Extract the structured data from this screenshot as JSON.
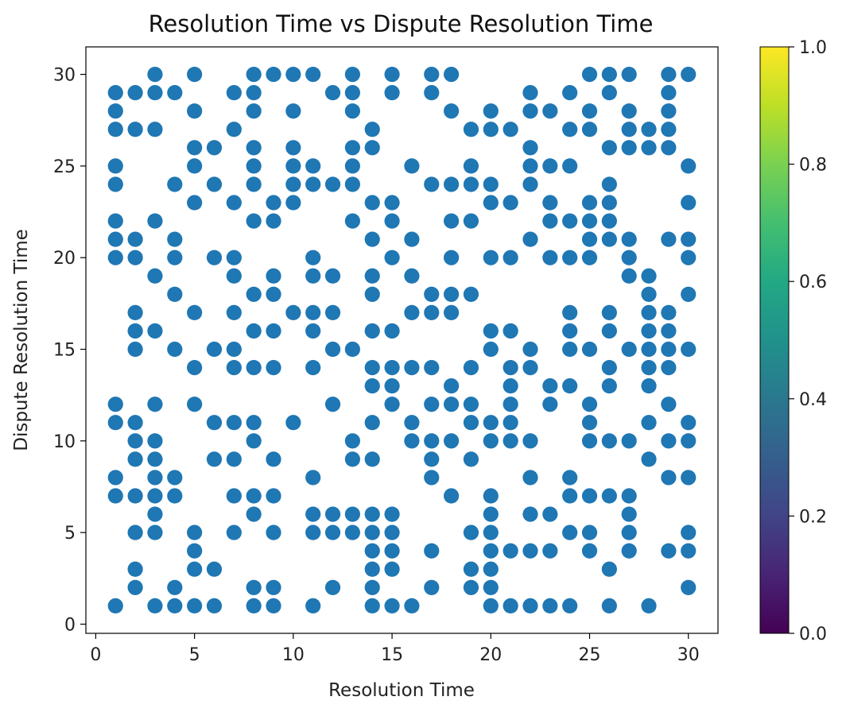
{
  "chart_data": {
    "type": "scatter",
    "title": "Resolution Time vs Dispute Resolution Time",
    "xlabel": "Resolution Time",
    "ylabel": "Dispute Resolution Time",
    "xlim": [
      -0.5,
      31.5
    ],
    "ylim": [
      -0.5,
      31.5
    ],
    "xticks": [
      0,
      5,
      10,
      15,
      20,
      25,
      30
    ],
    "yticks": [
      0,
      5,
      10,
      15,
      20,
      25,
      30
    ],
    "grid": false,
    "marker_color": "#1f77b4",
    "colorbar": {
      "colormap": "viridis",
      "range": [
        0.0,
        1.0
      ],
      "ticks": [
        "0.0",
        "0.2",
        "0.4",
        "0.6",
        "0.8",
        "1.0"
      ]
    },
    "points": [
      [
        1,
        29
      ],
      [
        1,
        28
      ],
      [
        1,
        27
      ],
      [
        1,
        25
      ],
      [
        1,
        24
      ],
      [
        1,
        22
      ],
      [
        1,
        21
      ],
      [
        1,
        20
      ],
      [
        1,
        12
      ],
      [
        1,
        11
      ],
      [
        1,
        8
      ],
      [
        1,
        7
      ],
      [
        1,
        1
      ],
      [
        2,
        29
      ],
      [
        2,
        27
      ],
      [
        2,
        21
      ],
      [
        2,
        20
      ],
      [
        2,
        17
      ],
      [
        2,
        16
      ],
      [
        2,
        15
      ],
      [
        2,
        11
      ],
      [
        2,
        10
      ],
      [
        2,
        9
      ],
      [
        2,
        7
      ],
      [
        2,
        5
      ],
      [
        2,
        3
      ],
      [
        2,
        2
      ],
      [
        3,
        30
      ],
      [
        3,
        29
      ],
      [
        3,
        27
      ],
      [
        3,
        22
      ],
      [
        3,
        19
      ],
      [
        3,
        16
      ],
      [
        3,
        12
      ],
      [
        3,
        10
      ],
      [
        3,
        9
      ],
      [
        3,
        8
      ],
      [
        3,
        7
      ],
      [
        3,
        6
      ],
      [
        3,
        5
      ],
      [
        3,
        1
      ],
      [
        4,
        29
      ],
      [
        4,
        24
      ],
      [
        4,
        21
      ],
      [
        4,
        20
      ],
      [
        4,
        18
      ],
      [
        4,
        15
      ],
      [
        4,
        8
      ],
      [
        4,
        7
      ],
      [
        4,
        2
      ],
      [
        4,
        1
      ],
      [
        5,
        30
      ],
      [
        5,
        28
      ],
      [
        5,
        26
      ],
      [
        5,
        25
      ],
      [
        5,
        23
      ],
      [
        5,
        17
      ],
      [
        5,
        14
      ],
      [
        5,
        12
      ],
      [
        5,
        5
      ],
      [
        5,
        4
      ],
      [
        5,
        3
      ],
      [
        5,
        1
      ],
      [
        6,
        26
      ],
      [
        6,
        24
      ],
      [
        6,
        20
      ],
      [
        6,
        15
      ],
      [
        6,
        11
      ],
      [
        6,
        9
      ],
      [
        6,
        3
      ],
      [
        6,
        1
      ],
      [
        7,
        29
      ],
      [
        7,
        27
      ],
      [
        7,
        23
      ],
      [
        7,
        20
      ],
      [
        7,
        19
      ],
      [
        7,
        17
      ],
      [
        7,
        15
      ],
      [
        7,
        14
      ],
      [
        7,
        11
      ],
      [
        7,
        9
      ],
      [
        7,
        7
      ],
      [
        7,
        5
      ],
      [
        8,
        30
      ],
      [
        8,
        29
      ],
      [
        8,
        28
      ],
      [
        8,
        26
      ],
      [
        8,
        25
      ],
      [
        8,
        24
      ],
      [
        8,
        22
      ],
      [
        8,
        18
      ],
      [
        8,
        16
      ],
      [
        8,
        14
      ],
      [
        8,
        11
      ],
      [
        8,
        10
      ],
      [
        8,
        7
      ],
      [
        8,
        6
      ],
      [
        8,
        2
      ],
      [
        8,
        1
      ],
      [
        9,
        30
      ],
      [
        9,
        23
      ],
      [
        9,
        22
      ],
      [
        9,
        19
      ],
      [
        9,
        18
      ],
      [
        9,
        16
      ],
      [
        9,
        14
      ],
      [
        9,
        9
      ],
      [
        9,
        7
      ],
      [
        9,
        5
      ],
      [
        9,
        2
      ],
      [
        9,
        1
      ],
      [
        10,
        30
      ],
      [
        10,
        28
      ],
      [
        10,
        26
      ],
      [
        10,
        25
      ],
      [
        10,
        24
      ],
      [
        10,
        23
      ],
      [
        10,
        17
      ],
      [
        10,
        11
      ],
      [
        11,
        30
      ],
      [
        11,
        25
      ],
      [
        11,
        24
      ],
      [
        11,
        20
      ],
      [
        11,
        19
      ],
      [
        11,
        17
      ],
      [
        11,
        16
      ],
      [
        11,
        14
      ],
      [
        11,
        8
      ],
      [
        11,
        6
      ],
      [
        11,
        5
      ],
      [
        11,
        1
      ],
      [
        12,
        29
      ],
      [
        12,
        24
      ],
      [
        12,
        19
      ],
      [
        12,
        17
      ],
      [
        12,
        15
      ],
      [
        12,
        12
      ],
      [
        12,
        6
      ],
      [
        12,
        5
      ],
      [
        12,
        2
      ],
      [
        13,
        30
      ],
      [
        13,
        29
      ],
      [
        13,
        28
      ],
      [
        13,
        26
      ],
      [
        13,
        25
      ],
      [
        13,
        24
      ],
      [
        13,
        22
      ],
      [
        13,
        15
      ],
      [
        13,
        10
      ],
      [
        13,
        9
      ],
      [
        13,
        6
      ],
      [
        13,
        5
      ],
      [
        14,
        27
      ],
      [
        14,
        26
      ],
      [
        14,
        23
      ],
      [
        14,
        21
      ],
      [
        14,
        19
      ],
      [
        14,
        18
      ],
      [
        14,
        16
      ],
      [
        14,
        14
      ],
      [
        14,
        13
      ],
      [
        14,
        11
      ],
      [
        14,
        9
      ],
      [
        14,
        6
      ],
      [
        14,
        5
      ],
      [
        14,
        4
      ],
      [
        14,
        3
      ],
      [
        14,
        2
      ],
      [
        14,
        1
      ],
      [
        15,
        30
      ],
      [
        15,
        29
      ],
      [
        15,
        23
      ],
      [
        15,
        22
      ],
      [
        15,
        20
      ],
      [
        15,
        16
      ],
      [
        15,
        14
      ],
      [
        15,
        13
      ],
      [
        15,
        12
      ],
      [
        15,
        6
      ],
      [
        15,
        5
      ],
      [
        15,
        4
      ],
      [
        15,
        3
      ],
      [
        15,
        1
      ],
      [
        16,
        25
      ],
      [
        16,
        21
      ],
      [
        16,
        19
      ],
      [
        16,
        17
      ],
      [
        16,
        14
      ],
      [
        16,
        11
      ],
      [
        16,
        10
      ],
      [
        16,
        1
      ],
      [
        17,
        30
      ],
      [
        17,
        29
      ],
      [
        17,
        24
      ],
      [
        17,
        18
      ],
      [
        17,
        17
      ],
      [
        17,
        14
      ],
      [
        17,
        12
      ],
      [
        17,
        10
      ],
      [
        17,
        9
      ],
      [
        17,
        8
      ],
      [
        17,
        4
      ],
      [
        17,
        2
      ],
      [
        18,
        30
      ],
      [
        18,
        28
      ],
      [
        18,
        24
      ],
      [
        18,
        22
      ],
      [
        18,
        20
      ],
      [
        18,
        18
      ],
      [
        18,
        17
      ],
      [
        18,
        13
      ],
      [
        18,
        12
      ],
      [
        18,
        10
      ],
      [
        18,
        7
      ],
      [
        19,
        27
      ],
      [
        19,
        25
      ],
      [
        19,
        24
      ],
      [
        19,
        22
      ],
      [
        19,
        18
      ],
      [
        19,
        14
      ],
      [
        19,
        12
      ],
      [
        19,
        11
      ],
      [
        19,
        9
      ],
      [
        19,
        5
      ],
      [
        19,
        3
      ],
      [
        19,
        2
      ],
      [
        20,
        28
      ],
      [
        20,
        27
      ],
      [
        20,
        24
      ],
      [
        20,
        23
      ],
      [
        20,
        20
      ],
      [
        20,
        16
      ],
      [
        20,
        15
      ],
      [
        20,
        11
      ],
      [
        20,
        10
      ],
      [
        20,
        7
      ],
      [
        20,
        6
      ],
      [
        20,
        5
      ],
      [
        20,
        4
      ],
      [
        20,
        3
      ],
      [
        20,
        2
      ],
      [
        20,
        1
      ],
      [
        21,
        27
      ],
      [
        21,
        23
      ],
      [
        21,
        20
      ],
      [
        21,
        16
      ],
      [
        21,
        14
      ],
      [
        21,
        13
      ],
      [
        21,
        12
      ],
      [
        21,
        11
      ],
      [
        21,
        10
      ],
      [
        21,
        4
      ],
      [
        21,
        1
      ],
      [
        22,
        29
      ],
      [
        22,
        28
      ],
      [
        22,
        26
      ],
      [
        22,
        25
      ],
      [
        22,
        24
      ],
      [
        22,
        21
      ],
      [
        22,
        15
      ],
      [
        22,
        14
      ],
      [
        22,
        10
      ],
      [
        22,
        8
      ],
      [
        22,
        6
      ],
      [
        22,
        4
      ],
      [
        22,
        1
      ],
      [
        23,
        28
      ],
      [
        23,
        25
      ],
      [
        23,
        23
      ],
      [
        23,
        22
      ],
      [
        23,
        20
      ],
      [
        23,
        13
      ],
      [
        23,
        12
      ],
      [
        23,
        6
      ],
      [
        23,
        4
      ],
      [
        23,
        1
      ],
      [
        24,
        29
      ],
      [
        24,
        27
      ],
      [
        24,
        25
      ],
      [
        24,
        22
      ],
      [
        24,
        20
      ],
      [
        24,
        17
      ],
      [
        24,
        16
      ],
      [
        24,
        15
      ],
      [
        24,
        13
      ],
      [
        24,
        8
      ],
      [
        24,
        7
      ],
      [
        24,
        5
      ],
      [
        24,
        1
      ],
      [
        25,
        30
      ],
      [
        25,
        28
      ],
      [
        25,
        27
      ],
      [
        25,
        23
      ],
      [
        25,
        22
      ],
      [
        25,
        21
      ],
      [
        25,
        20
      ],
      [
        25,
        15
      ],
      [
        25,
        12
      ],
      [
        25,
        11
      ],
      [
        25,
        10
      ],
      [
        25,
        7
      ],
      [
        25,
        5
      ],
      [
        25,
        4
      ],
      [
        26,
        30
      ],
      [
        26,
        29
      ],
      [
        26,
        26
      ],
      [
        26,
        24
      ],
      [
        26,
        23
      ],
      [
        26,
        22
      ],
      [
        26,
        21
      ],
      [
        26,
        17
      ],
      [
        26,
        16
      ],
      [
        26,
        14
      ],
      [
        26,
        13
      ],
      [
        26,
        10
      ],
      [
        26,
        7
      ],
      [
        26,
        3
      ],
      [
        26,
        1
      ],
      [
        27,
        30
      ],
      [
        27,
        28
      ],
      [
        27,
        27
      ],
      [
        27,
        26
      ],
      [
        27,
        21
      ],
      [
        27,
        20
      ],
      [
        27,
        19
      ],
      [
        27,
        15
      ],
      [
        27,
        10
      ],
      [
        27,
        7
      ],
      [
        27,
        6
      ],
      [
        27,
        5
      ],
      [
        27,
        4
      ],
      [
        28,
        27
      ],
      [
        28,
        26
      ],
      [
        28,
        19
      ],
      [
        28,
        18
      ],
      [
        28,
        17
      ],
      [
        28,
        16
      ],
      [
        28,
        15
      ],
      [
        28,
        14
      ],
      [
        28,
        13
      ],
      [
        28,
        11
      ],
      [
        28,
        9
      ],
      [
        28,
        1
      ],
      [
        29,
        30
      ],
      [
        29,
        29
      ],
      [
        29,
        28
      ],
      [
        29,
        27
      ],
      [
        29,
        26
      ],
      [
        29,
        21
      ],
      [
        29,
        17
      ],
      [
        29,
        16
      ],
      [
        29,
        15
      ],
      [
        29,
        14
      ],
      [
        29,
        12
      ],
      [
        29,
        10
      ],
      [
        29,
        8
      ],
      [
        29,
        4
      ],
      [
        30,
        30
      ],
      [
        30,
        25
      ],
      [
        30,
        23
      ],
      [
        30,
        21
      ],
      [
        30,
        20
      ],
      [
        30,
        18
      ],
      [
        30,
        15
      ],
      [
        30,
        11
      ],
      [
        30,
        10
      ],
      [
        30,
        8
      ],
      [
        30,
        5
      ],
      [
        30,
        4
      ],
      [
        30,
        2
      ]
    ]
  }
}
